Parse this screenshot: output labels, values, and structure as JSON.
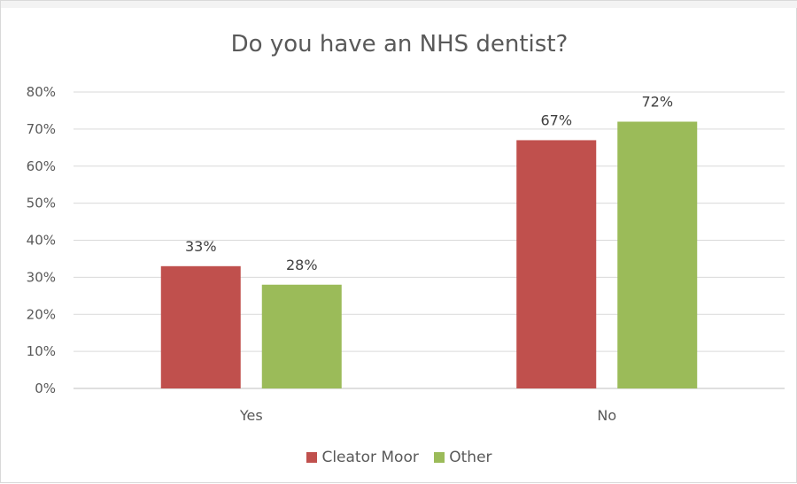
{
  "chart_data": {
    "type": "bar",
    "title": "Do you have an NHS dentist?",
    "categories": [
      "Yes",
      "No"
    ],
    "series": [
      {
        "name": "Cleator Moor",
        "values": [
          33,
          67
        ],
        "color": "#c0504d"
      },
      {
        "name": "Other",
        "values": [
          28,
          72
        ],
        "color": "#9bbb59"
      }
    ],
    "data_labels": [
      [
        "33%",
        "67%"
      ],
      [
        "28%",
        "72%"
      ]
    ],
    "yticks": [
      "0%",
      "10%",
      "20%",
      "30%",
      "40%",
      "50%",
      "60%",
      "70%",
      "80%"
    ],
    "ylim": [
      0,
      80
    ],
    "grid": true,
    "legend_position": "bottom"
  }
}
